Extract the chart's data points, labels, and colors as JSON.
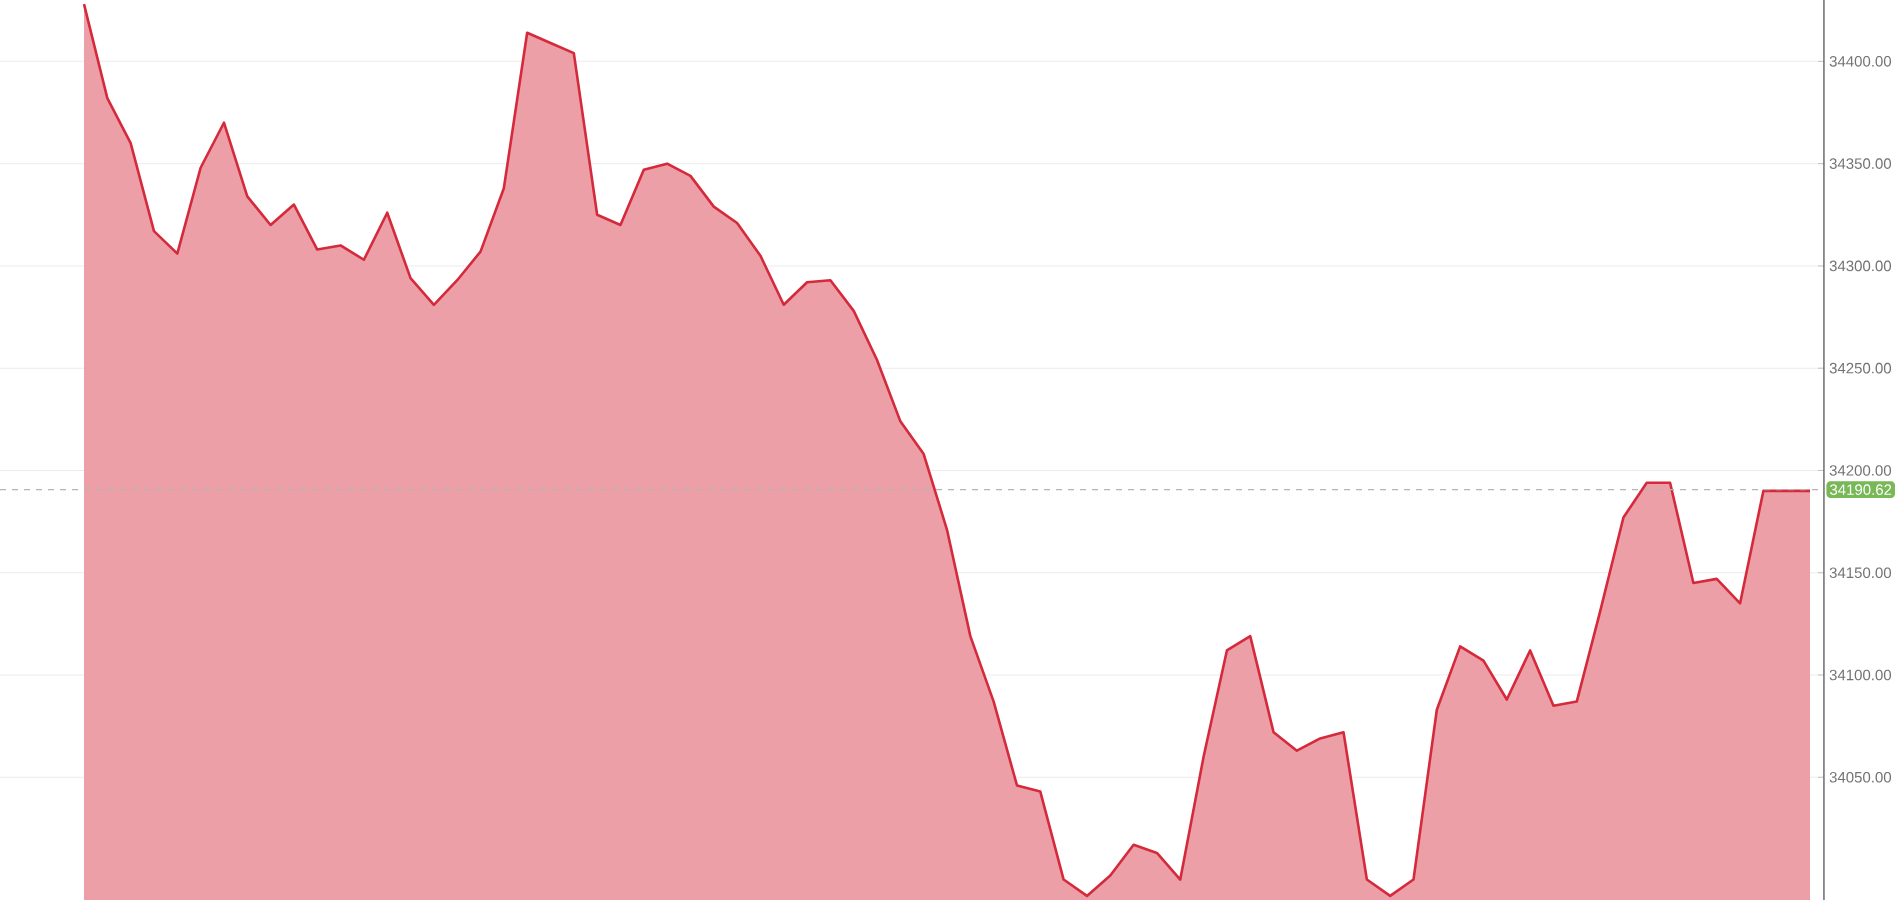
{
  "chart_data": {
    "type": "area",
    "categories": [
      null,
      null,
      null,
      null,
      null,
      null,
      null,
      null,
      null,
      null,
      null,
      null,
      null,
      null,
      null,
      null,
      null,
      null,
      null,
      null,
      null,
      null,
      null,
      null,
      null,
      null,
      null,
      null,
      null,
      null,
      null,
      null,
      null,
      null,
      null,
      null,
      null,
      null,
      null,
      null,
      null,
      null,
      null,
      null,
      null,
      null,
      null,
      null,
      null,
      null,
      null,
      null,
      null,
      null,
      null,
      null,
      null,
      null,
      null,
      null,
      null,
      null,
      null,
      null,
      null,
      null,
      null,
      null,
      null,
      null,
      null,
      null,
      null,
      null,
      null
    ],
    "series": [
      {
        "color": "#d42a3c",
        "values": [
          34428,
          34382,
          34360,
          34317,
          34306,
          34348,
          34370,
          34334,
          34320,
          34330,
          34308,
          34310,
          34303,
          34326,
          34294,
          34281,
          34293,
          34307,
          34338,
          34414,
          34409,
          34404,
          34325,
          34320,
          34347,
          34350,
          34344,
          34329,
          34321,
          34305,
          34281,
          34292,
          34293,
          34278,
          34254,
          34224,
          34208,
          34171,
          34119,
          34087,
          34046,
          34043,
          34000,
          33992,
          34002,
          34017,
          34013,
          34000,
          34060,
          34112,
          34119,
          34072,
          34063,
          34069,
          34072,
          34000,
          33992,
          34000,
          34083,
          34114,
          34107,
          34088,
          34112,
          34085,
          34087,
          34131,
          34177,
          34194,
          34194,
          34145,
          34147,
          34135,
          34190,
          34190,
          34190
        ]
      }
    ],
    "ylim": [
      33990,
      34430
    ],
    "yticks": [
      {
        "value": 34050,
        "label": "34050.00"
      },
      {
        "value": 34100,
        "label": "34100.00"
      },
      {
        "value": 34150,
        "label": "34150.00"
      },
      {
        "value": 34200,
        "label": "34200.00"
      },
      {
        "value": 34250,
        "label": "34250.00"
      },
      {
        "value": 34300,
        "label": "34300.00"
      },
      {
        "value": 34350,
        "label": "34350.00"
      },
      {
        "value": 34400,
        "label": "34400.00"
      }
    ],
    "tick_labels": "y",
    "grid": true,
    "ref_lines": [
      {
        "axis": "y",
        "value": 34190.62,
        "label": "34190.62",
        "color": "#b4b4b4",
        "line_style": "dashed"
      }
    ]
  }
}
